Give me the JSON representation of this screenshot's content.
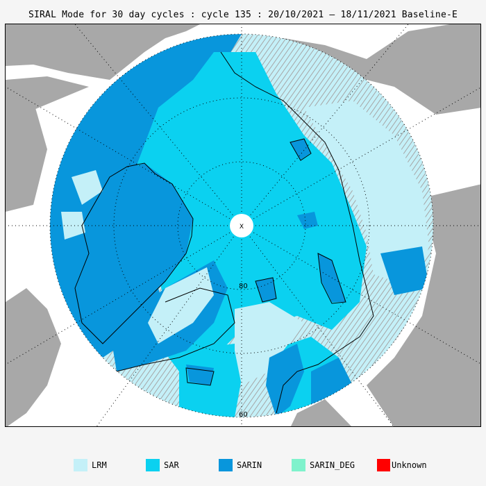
{
  "title": "SIRAL Mode for 30 day cycles : cycle 135 : 20/10/2021 – 18/11/2021 Baseline-E",
  "map": {
    "lat_labels": [
      "80",
      "60"
    ],
    "pole_marker": "ⵝ"
  },
  "colors": {
    "LRM": "#c4f0f8",
    "SAR": "#0bd1f0",
    "SARIN": "#0896dc",
    "SARIN_DEG": "#7ff2cc",
    "Unknown": "#ff0000",
    "land": "#a8a8a8",
    "ocean": "#ffffff"
  },
  "legend": [
    {
      "label": "LRM",
      "color": "#c4f0f8"
    },
    {
      "label": "SAR",
      "color": "#0bd1f0"
    },
    {
      "label": "SARIN",
      "color": "#0896dc"
    },
    {
      "label": "SARIN_DEG",
      "color": "#7ff2cc"
    },
    {
      "label": "Unknown",
      "color": "#ff0000"
    }
  ]
}
